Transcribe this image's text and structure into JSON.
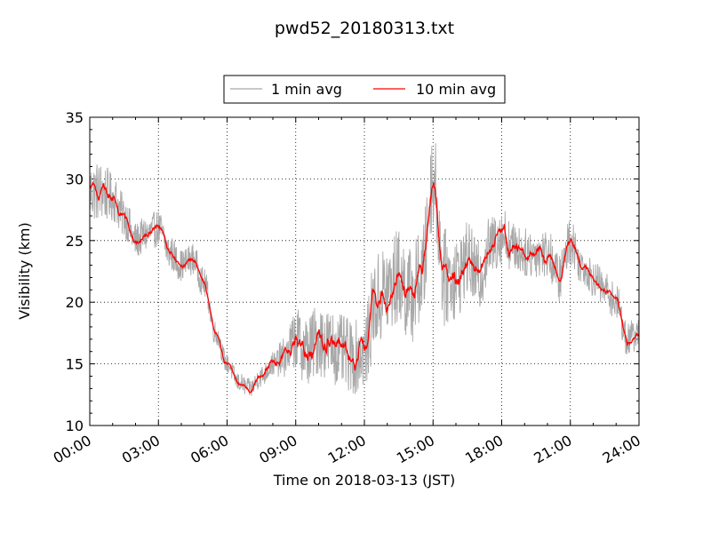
{
  "chart_data": {
    "type": "line",
    "title": "pwd52_20180313.txt",
    "xlabel": "Time on 2018-03-13 (JST)",
    "ylabel": "Visibility (km)",
    "xlim": [
      "00:00",
      "24:00"
    ],
    "ylim": [
      10,
      35
    ],
    "x_ticks": [
      "00:00",
      "03:00",
      "06:00",
      "09:00",
      "12:00",
      "15:00",
      "18:00",
      "21:00",
      "24:00"
    ],
    "y_ticks": [
      "10",
      "15",
      "20",
      "25",
      "30",
      "35"
    ],
    "grid": true,
    "legend_position": "top-center",
    "series": [
      {
        "name": "1 min avg",
        "color": "#a8a8a8",
        "x": [
          "00:00",
          "00:30",
          "01:00",
          "01:30",
          "02:00",
          "02:30",
          "03:00",
          "03:30",
          "04:00",
          "04:30",
          "05:00",
          "05:30",
          "06:00",
          "06:30",
          "07:00",
          "07:30",
          "08:00",
          "08:30",
          "09:00",
          "09:30",
          "10:00",
          "10:30",
          "11:00",
          "11:30",
          "12:00",
          "12:30",
          "13:00",
          "13:30",
          "14:00",
          "14:30",
          "15:00",
          "15:30",
          "16:00",
          "16:30",
          "17:00",
          "17:30",
          "18:00",
          "18:30",
          "19:00",
          "19:30",
          "20:00",
          "20:30",
          "21:00",
          "21:30",
          "22:00",
          "22:30",
          "23:00",
          "23:30",
          "24:00"
        ],
        "y": [
          29,
          29,
          28.5,
          27,
          25,
          25.5,
          26,
          24,
          23,
          23.5,
          21.5,
          17.5,
          15,
          13.5,
          13,
          14,
          15,
          15.5,
          17,
          16,
          17,
          16.5,
          16,
          15.5,
          16,
          20,
          21,
          22,
          20.5,
          22,
          30,
          22,
          22,
          23.5,
          22,
          24.5,
          25.5,
          24.5,
          24,
          24,
          24,
          22,
          25,
          23,
          22,
          21,
          20,
          17,
          17.5
        ],
        "noise": [
          2.5,
          2.5,
          2,
          1.8,
          1.5,
          1.5,
          1.5,
          1.5,
          1.3,
          1.3,
          1.2,
          1,
          0.8,
          0.8,
          0.8,
          0.9,
          1,
          1.6,
          2.5,
          3,
          3,
          3,
          3,
          3,
          3,
          4,
          4,
          4,
          4,
          4,
          4,
          4,
          3.5,
          3,
          3,
          2.5,
          2.5,
          2,
          2,
          2,
          2,
          2,
          2,
          1.5,
          1.5,
          1.5,
          1.5,
          1.5,
          1.2
        ]
      },
      {
        "name": "10 min avg",
        "color": "#ff0000",
        "x": [
          "00:00",
          "00:30",
          "01:00",
          "01:30",
          "02:00",
          "02:30",
          "03:00",
          "03:30",
          "04:00",
          "04:30",
          "05:00",
          "05:30",
          "06:00",
          "06:30",
          "07:00",
          "07:30",
          "08:00",
          "08:30",
          "09:00",
          "09:30",
          "10:00",
          "10:30",
          "11:00",
          "11:30",
          "12:00",
          "12:30",
          "13:00",
          "13:30",
          "14:00",
          "14:30",
          "15:00",
          "15:30",
          "16:00",
          "16:30",
          "17:00",
          "17:30",
          "18:00",
          "18:30",
          "19:00",
          "19:30",
          "20:00",
          "20:30",
          "21:00",
          "21:30",
          "22:00",
          "22:30",
          "23:00",
          "23:30",
          "24:00"
        ],
        "y": [
          29,
          29,
          28.5,
          27,
          25,
          25.5,
          26,
          24,
          23,
          23.5,
          21.5,
          17.5,
          15,
          13.5,
          13,
          14,
          15,
          15.5,
          17,
          16,
          17,
          16.5,
          16,
          15.5,
          16,
          20,
          21,
          22,
          20.5,
          22,
          30,
          22,
          22,
          23.5,
          22,
          24.5,
          25.5,
          24.5,
          24,
          24,
          24,
          22,
          25,
          23,
          22,
          21,
          20,
          17,
          17.5
        ],
        "noise": [
          0.8,
          0.8,
          0.7,
          0.6,
          0.5,
          0.5,
          0.5,
          0.4,
          0.4,
          0.4,
          0.3,
          0.3,
          0.3,
          0.3,
          0.3,
          0.4,
          0.5,
          0.8,
          1,
          1.2,
          1.2,
          1.2,
          1.2,
          1.2,
          1.2,
          1.2,
          1.3,
          1.3,
          1.3,
          1.3,
          1.3,
          1.3,
          1.2,
          1.1,
          1,
          0.9,
          0.9,
          0.8,
          0.7,
          0.7,
          0.7,
          0.7,
          0.7,
          0.5,
          0.5,
          0.5,
          0.5,
          0.5,
          0.4
        ]
      }
    ]
  }
}
